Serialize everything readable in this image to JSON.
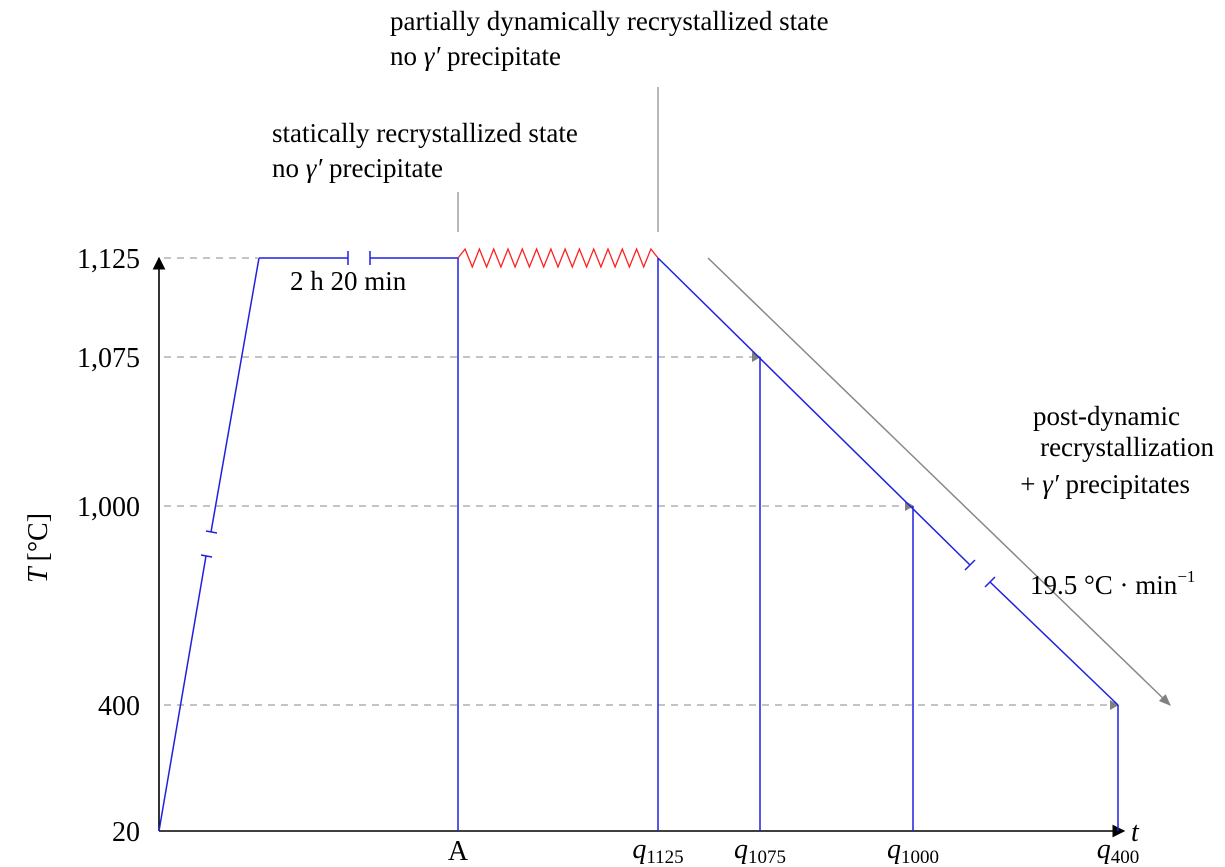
{
  "y_axis": {
    "label_symbol": "T",
    "label_unit": "[°C]",
    "ticks": [
      "1,125",
      "1,075",
      "1,000",
      "400",
      "20"
    ]
  },
  "x_axis": {
    "label": "t",
    "ticks": [
      {
        "main": "A",
        "sub": ""
      },
      {
        "main": "q",
        "sub": "1125"
      },
      {
        "main": "q",
        "sub": "1075"
      },
      {
        "main": "q",
        "sub": "1000"
      },
      {
        "main": "q",
        "sub": "400"
      }
    ]
  },
  "annotations": {
    "partial_line1": "partially dynamically recrystallized state",
    "partial_line2_prefix": "no ",
    "partial_line2_symbol": "γ′",
    "partial_line2_suffix": " precipitate",
    "static_line1": "statically recrystallized state",
    "static_line2_prefix": "no ",
    "static_line2_symbol": "γ′",
    "static_line2_suffix": " precipitate",
    "hold_time": "2 h 20 min",
    "post_line1": "post-dynamic",
    "post_line2": "recrystallization",
    "post_line3_prefix": "+ ",
    "post_line3_symbol": "γ′",
    "post_line3_suffix": " precipitates",
    "rate_value": "19.5 °C · min",
    "rate_exp": "−1"
  },
  "colors": {
    "path": "#2020e0",
    "deformation": "#ff2020",
    "guide": "#888888",
    "arrow": "#888888",
    "axis": "#000000"
  }
}
